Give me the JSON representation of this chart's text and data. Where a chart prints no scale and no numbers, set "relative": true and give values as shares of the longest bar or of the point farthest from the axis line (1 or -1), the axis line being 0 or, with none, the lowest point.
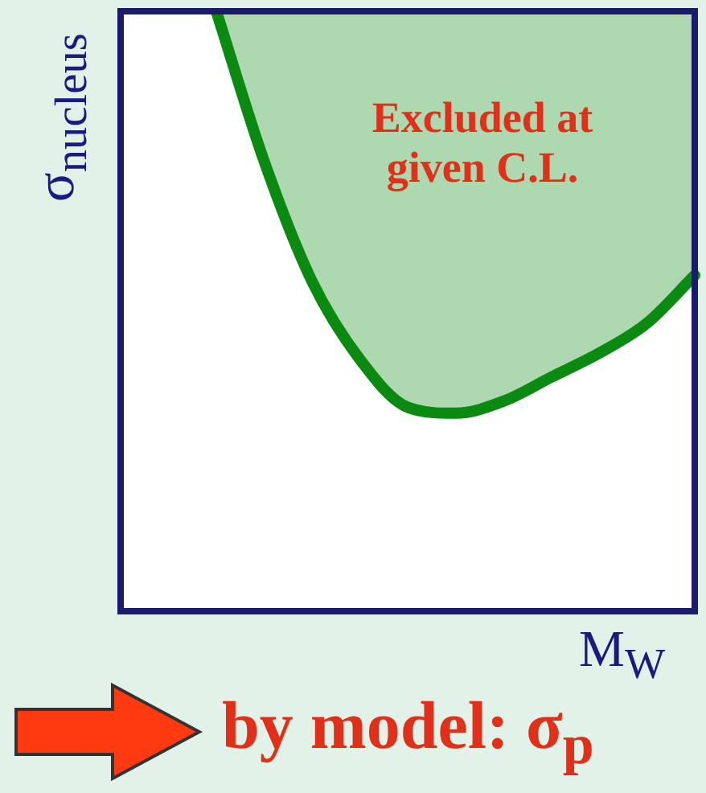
{
  "chart_data": {
    "type": "line",
    "relative": true,
    "xlabel": "M$_{W}$",
    "ylabel": "σ$_{nucleus}$",
    "categories": [
      null,
      null,
      null,
      null,
      null,
      null,
      null,
      null,
      null,
      null,
      null,
      null,
      null
    ],
    "series": [
      {
        "color": "#0b8a12",
        "values": [
          null,
          null,
          1.0,
          0.75,
          0.55,
          0.42,
          0.34,
          0.33,
          0.35,
          0.39,
          0.43,
          0.48,
          0.56
        ]
      }
    ],
    "annotations": [
      "Excluded at given C.L.",
      "by model: σ$_{p}$"
    ],
    "legend": false,
    "marker": "none",
    "line_style": "solid"
  }
}
